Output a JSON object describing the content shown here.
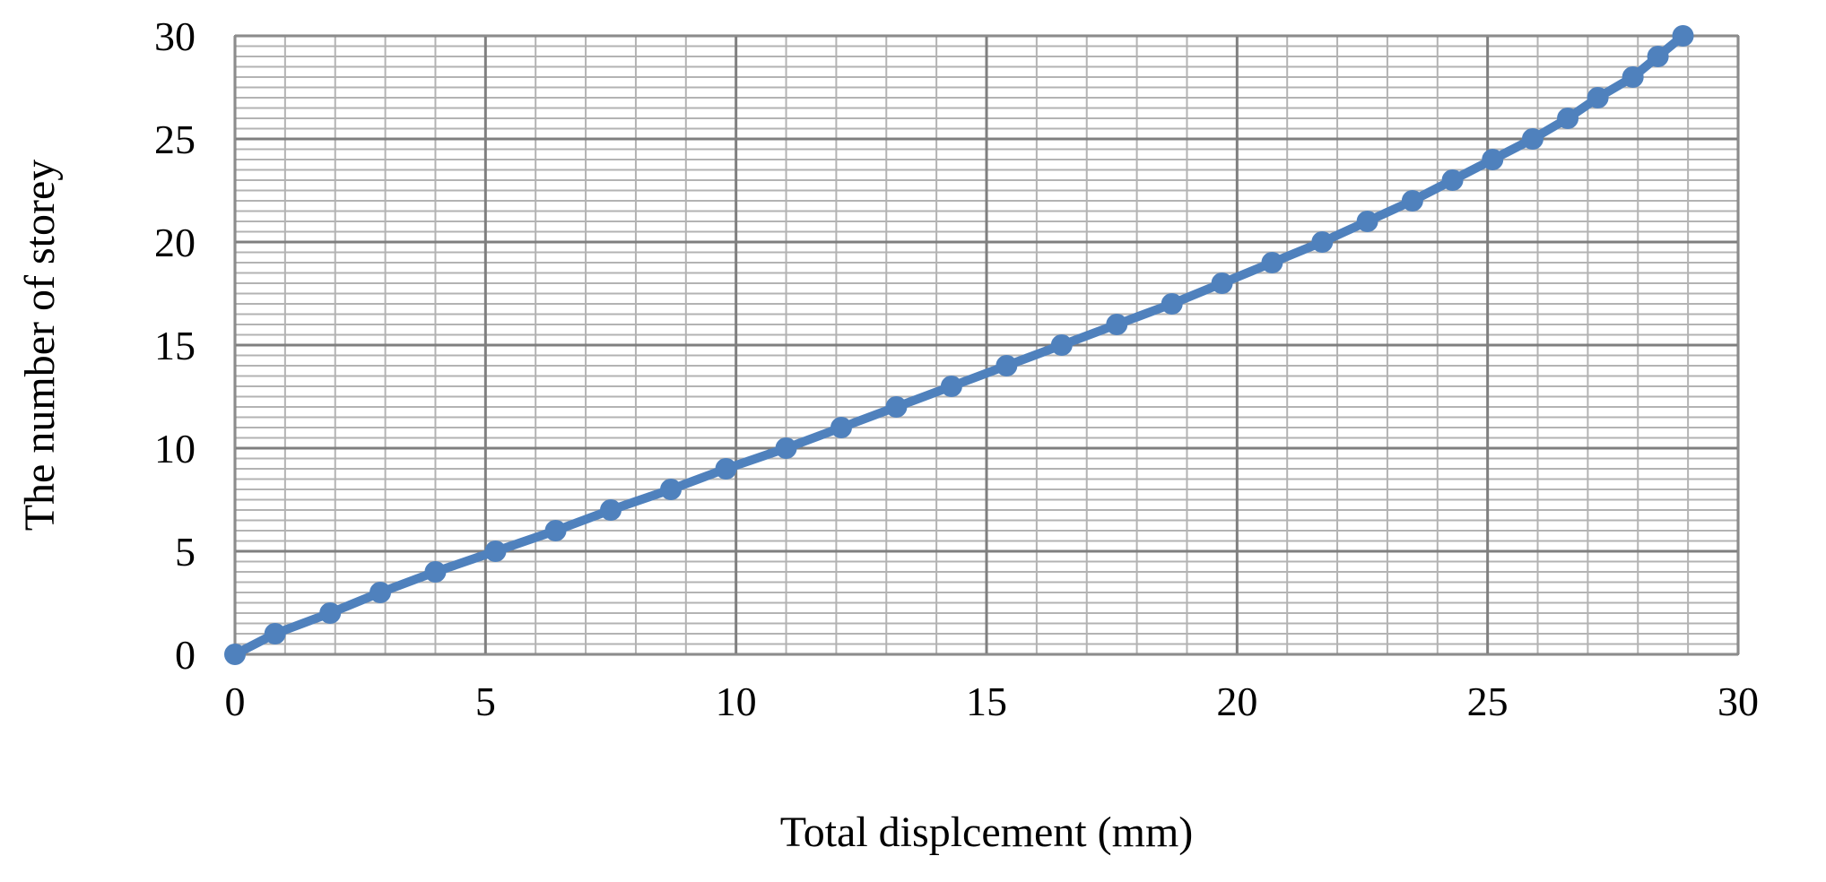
{
  "chart_data": {
    "type": "scatter",
    "title": "",
    "xlabel": "Total displcement (mm)",
    "ylabel": "The number of storey",
    "xlim": [
      0,
      30
    ],
    "ylim": [
      0,
      30
    ],
    "x_ticks": [
      0,
      5,
      10,
      15,
      20,
      25,
      30
    ],
    "y_ticks": [
      0,
      5,
      10,
      15,
      20,
      25,
      30
    ],
    "x_minor_step": 1,
    "y_minor_step": 1,
    "grid": true,
    "legend": "none",
    "series": [
      {
        "color": "#4f81bd",
        "line": true,
        "markers": true,
        "points": [
          {
            "x": 0,
            "y": 0
          },
          {
            "x": 0.8,
            "y": 1
          },
          {
            "x": 1.9,
            "y": 2
          },
          {
            "x": 2.9,
            "y": 3
          },
          {
            "x": 4.0,
            "y": 4
          },
          {
            "x": 5.2,
            "y": 5
          },
          {
            "x": 6.4,
            "y": 6
          },
          {
            "x": 7.5,
            "y": 7
          },
          {
            "x": 8.7,
            "y": 8
          },
          {
            "x": 9.8,
            "y": 9
          },
          {
            "x": 11.0,
            "y": 10
          },
          {
            "x": 12.1,
            "y": 11
          },
          {
            "x": 13.2,
            "y": 12
          },
          {
            "x": 14.3,
            "y": 13
          },
          {
            "x": 15.4,
            "y": 14
          },
          {
            "x": 16.5,
            "y": 15
          },
          {
            "x": 17.6,
            "y": 16
          },
          {
            "x": 18.7,
            "y": 17
          },
          {
            "x": 19.7,
            "y": 18
          },
          {
            "x": 20.7,
            "y": 19
          },
          {
            "x": 21.7,
            "y": 20
          },
          {
            "x": 22.6,
            "y": 21
          },
          {
            "x": 23.5,
            "y": 22
          },
          {
            "x": 24.3,
            "y": 23
          },
          {
            "x": 25.1,
            "y": 24
          },
          {
            "x": 25.9,
            "y": 25
          },
          {
            "x": 26.6,
            "y": 26
          },
          {
            "x": 27.2,
            "y": 27
          },
          {
            "x": 27.9,
            "y": 28
          },
          {
            "x": 28.4,
            "y": 29
          },
          {
            "x": 28.9,
            "y": 30
          }
        ]
      }
    ]
  }
}
